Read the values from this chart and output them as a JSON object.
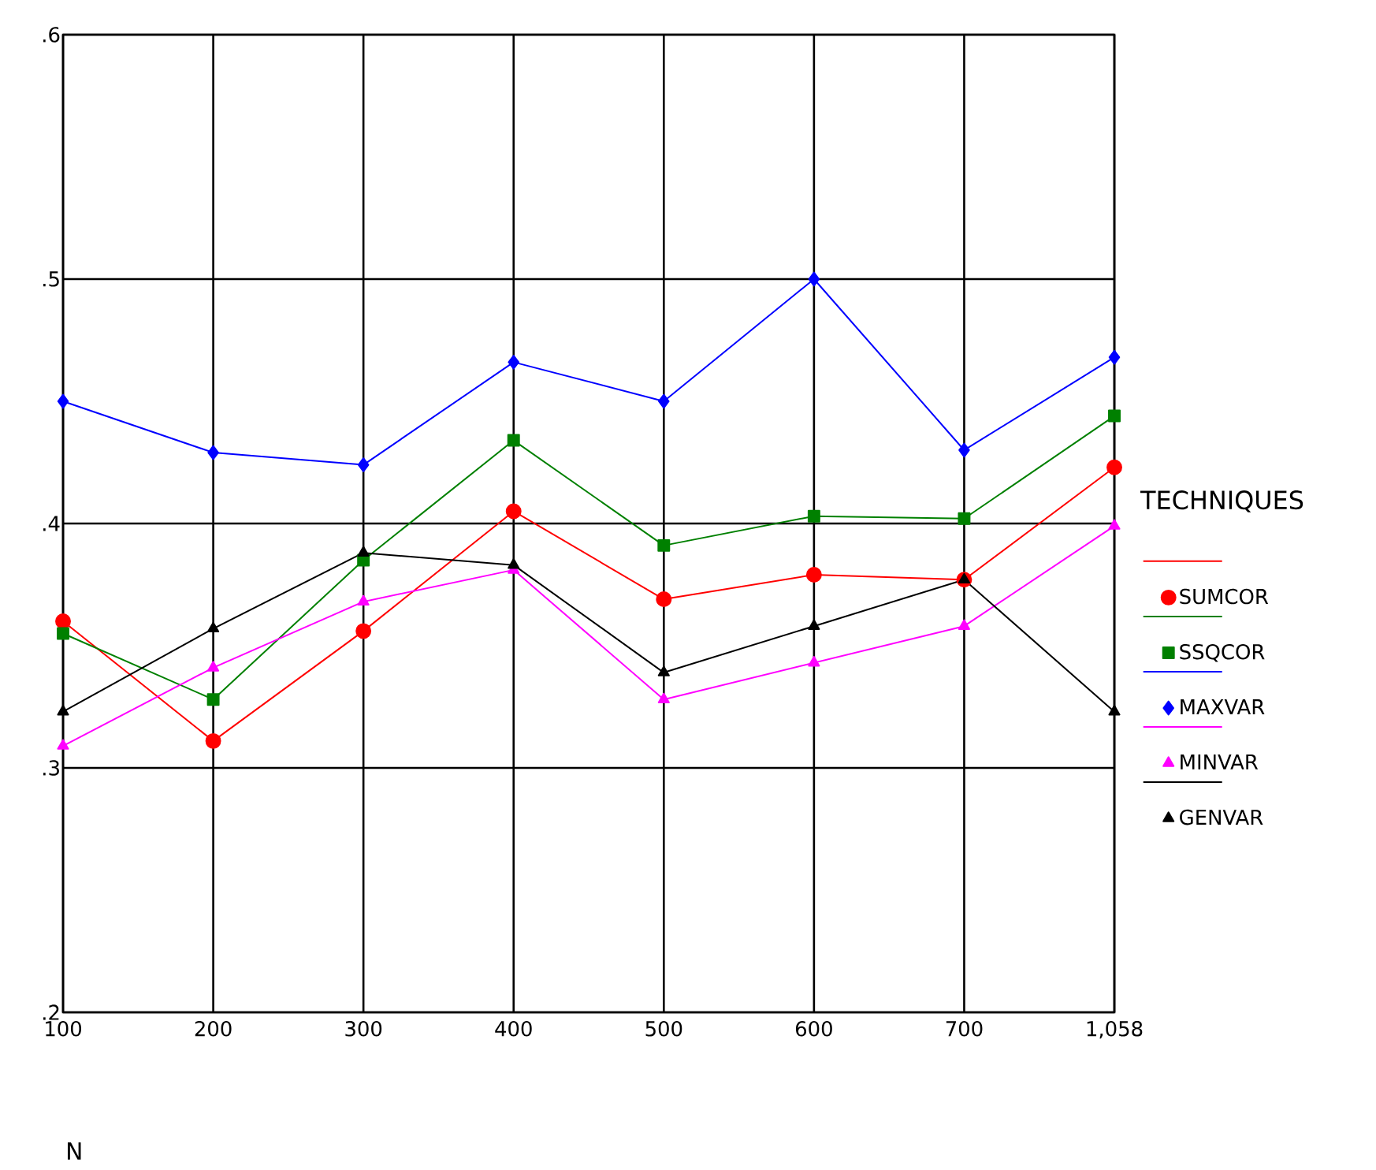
{
  "chart_data": {
    "type": "line",
    "xlabel": "N",
    "legend_title": "TECHNIQUES",
    "legend": "right",
    "grid": true,
    "categories": [
      "100",
      "200",
      "300",
      "400",
      "500",
      "600",
      "700",
      "1,058"
    ],
    "ylim": [
      0.2,
      0.6
    ],
    "yticks": [
      {
        "value": 0.2,
        "label": ".2"
      },
      {
        "value": 0.3,
        "label": ".3"
      },
      {
        "value": 0.4,
        "label": ".4"
      },
      {
        "value": 0.5,
        "label": ".5"
      },
      {
        "value": 0.6,
        "label": ".6"
      }
    ],
    "series": [
      {
        "name": "SUMCOR",
        "color": "#ff0000",
        "marker": "circle",
        "values": [
          0.36,
          0.311,
          0.356,
          0.405,
          0.369,
          0.379,
          0.377,
          0.423
        ]
      },
      {
        "name": "SSQCOR",
        "color": "#008000",
        "marker": "square",
        "values": [
          0.355,
          0.328,
          0.385,
          0.434,
          0.391,
          0.403,
          0.402,
          0.444
        ]
      },
      {
        "name": "MAXVAR",
        "color": "#0000ff",
        "marker": "diamond",
        "values": [
          0.45,
          0.429,
          0.424,
          0.466,
          0.45,
          0.5,
          0.43,
          0.468
        ]
      },
      {
        "name": "MINVAR",
        "color": "#ff00ff",
        "marker": "triangle",
        "values": [
          0.309,
          0.341,
          0.368,
          0.381,
          0.328,
          0.343,
          0.358,
          0.399
        ]
      },
      {
        "name": "GENVAR",
        "color": "#000000",
        "marker": "triangle",
        "values": [
          0.323,
          0.357,
          0.388,
          0.383,
          0.339,
          0.358,
          0.377,
          0.323
        ]
      }
    ]
  }
}
